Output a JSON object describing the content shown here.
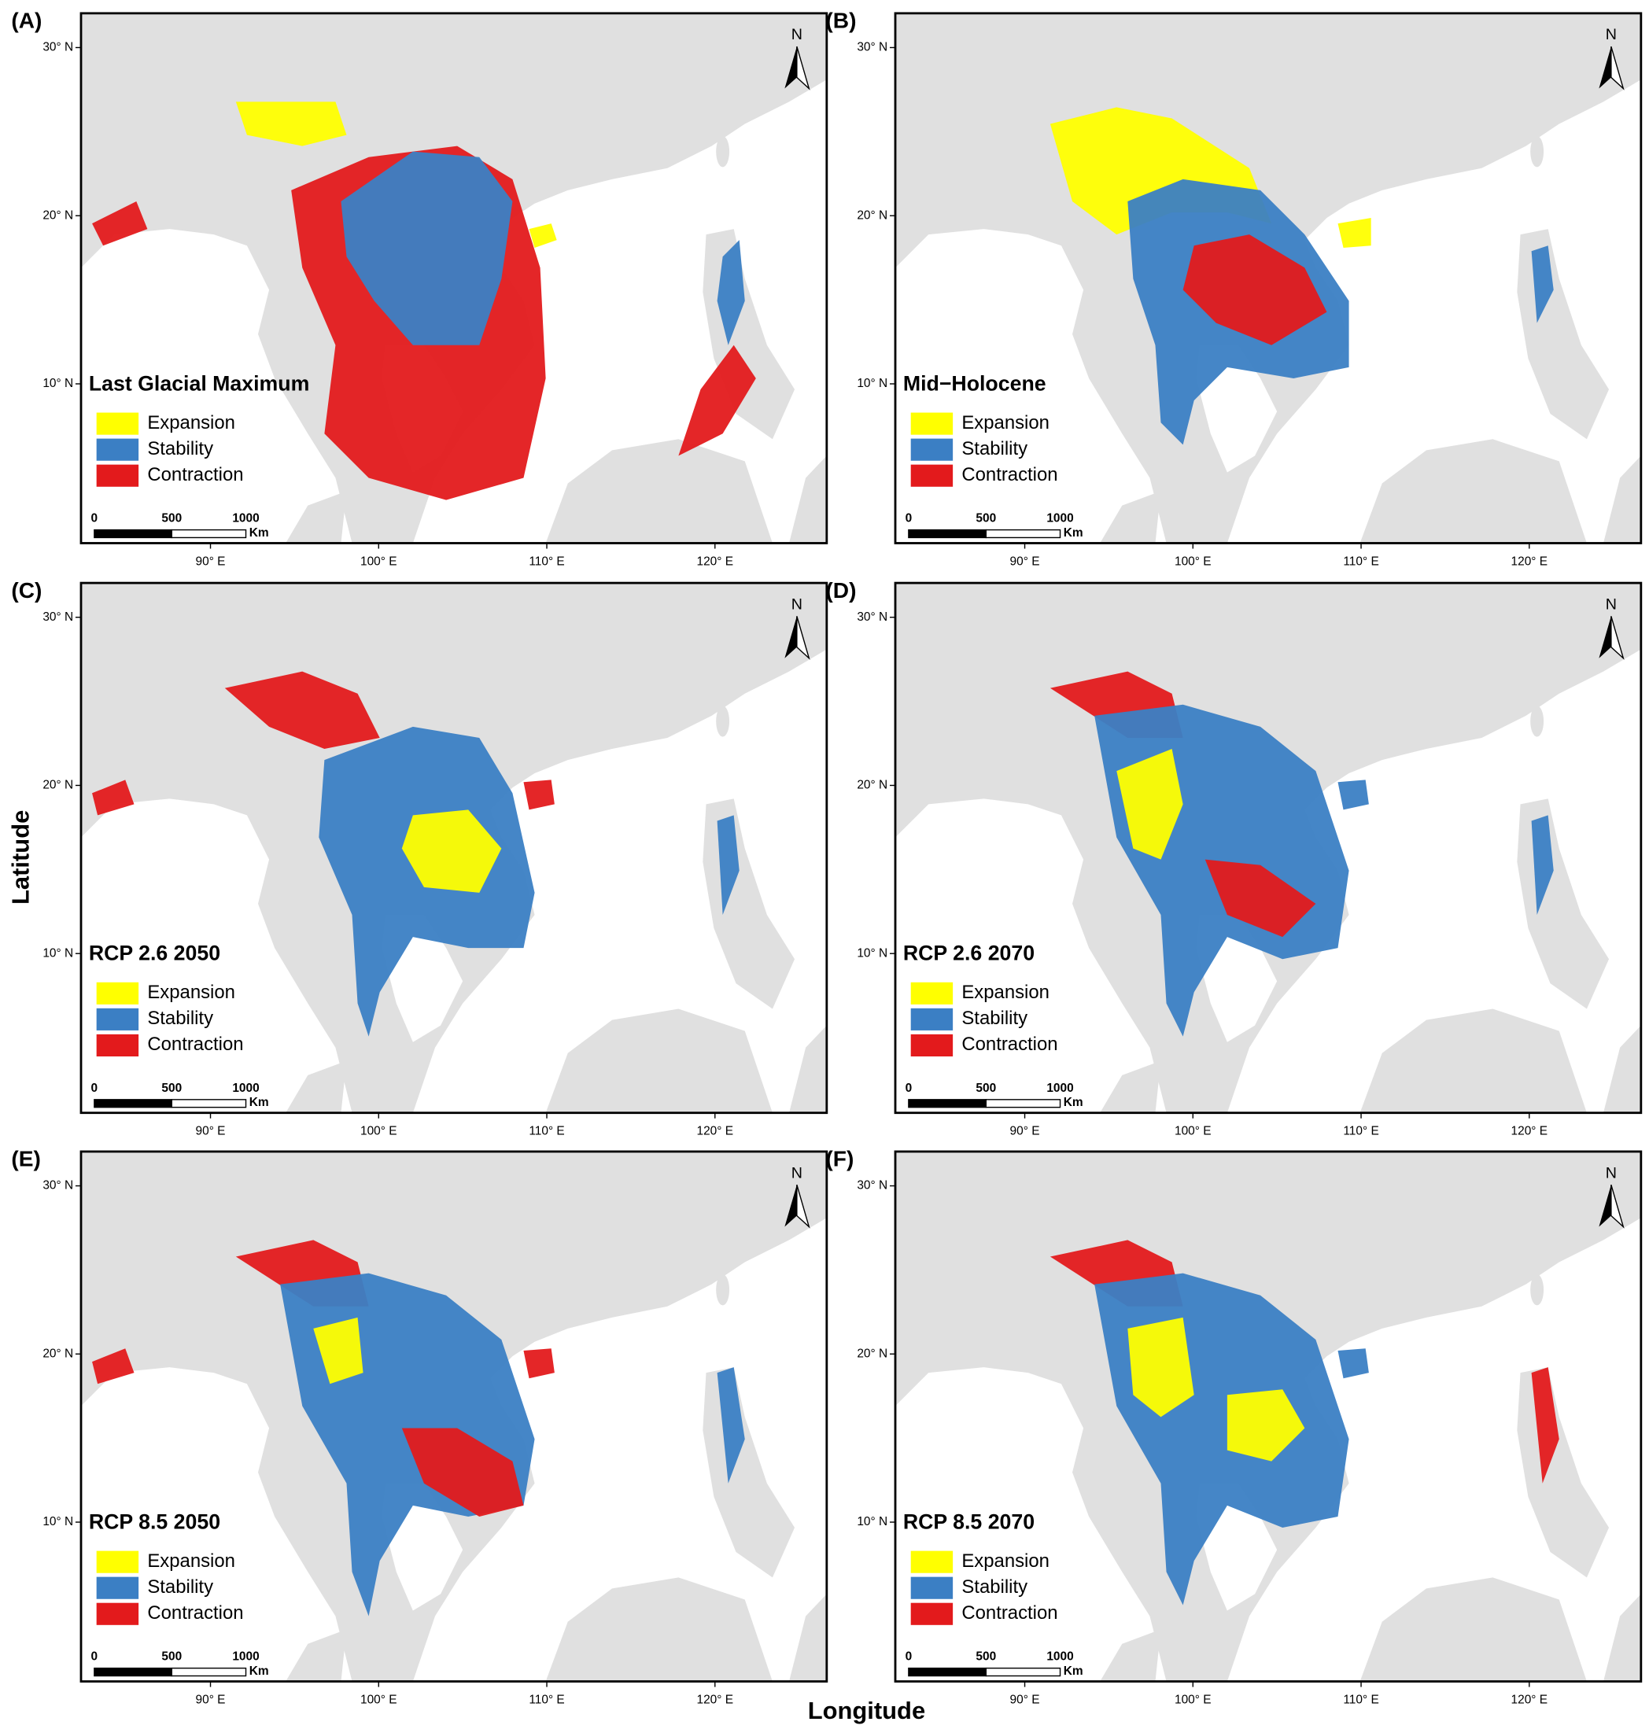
{
  "figure": {
    "x_axis_title": "Longitude",
    "y_axis_title": "Latitude",
    "lat_ticks": [
      "30° N",
      "20° N",
      "10° N"
    ],
    "lon_ticks": [
      "90° E",
      "100° E",
      "110° E",
      "120° E"
    ],
    "north": "N",
    "scale_bar": {
      "ticks": [
        0,
        500,
        1000
      ],
      "unit": "Km"
    },
    "legend": [
      {
        "name": "Expansion",
        "color": "#ffff00"
      },
      {
        "name": "Stability",
        "color": "#3b7fc4"
      },
      {
        "name": "Contraction",
        "color": "#e31a1c"
      }
    ],
    "panels": [
      {
        "label": "(A)",
        "title": "Last Glacial Maximum"
      },
      {
        "label": "(B)",
        "title": "Mid−Holocene"
      },
      {
        "label": "(C)",
        "title": "RCP 2.6 2050"
      },
      {
        "label": "(D)",
        "title": "RCP 2.6 2070"
      },
      {
        "label": "(E)",
        "title": "RCP 8.5 2050"
      },
      {
        "label": "(F)",
        "title": "RCP 8.5 2070"
      }
    ]
  }
}
